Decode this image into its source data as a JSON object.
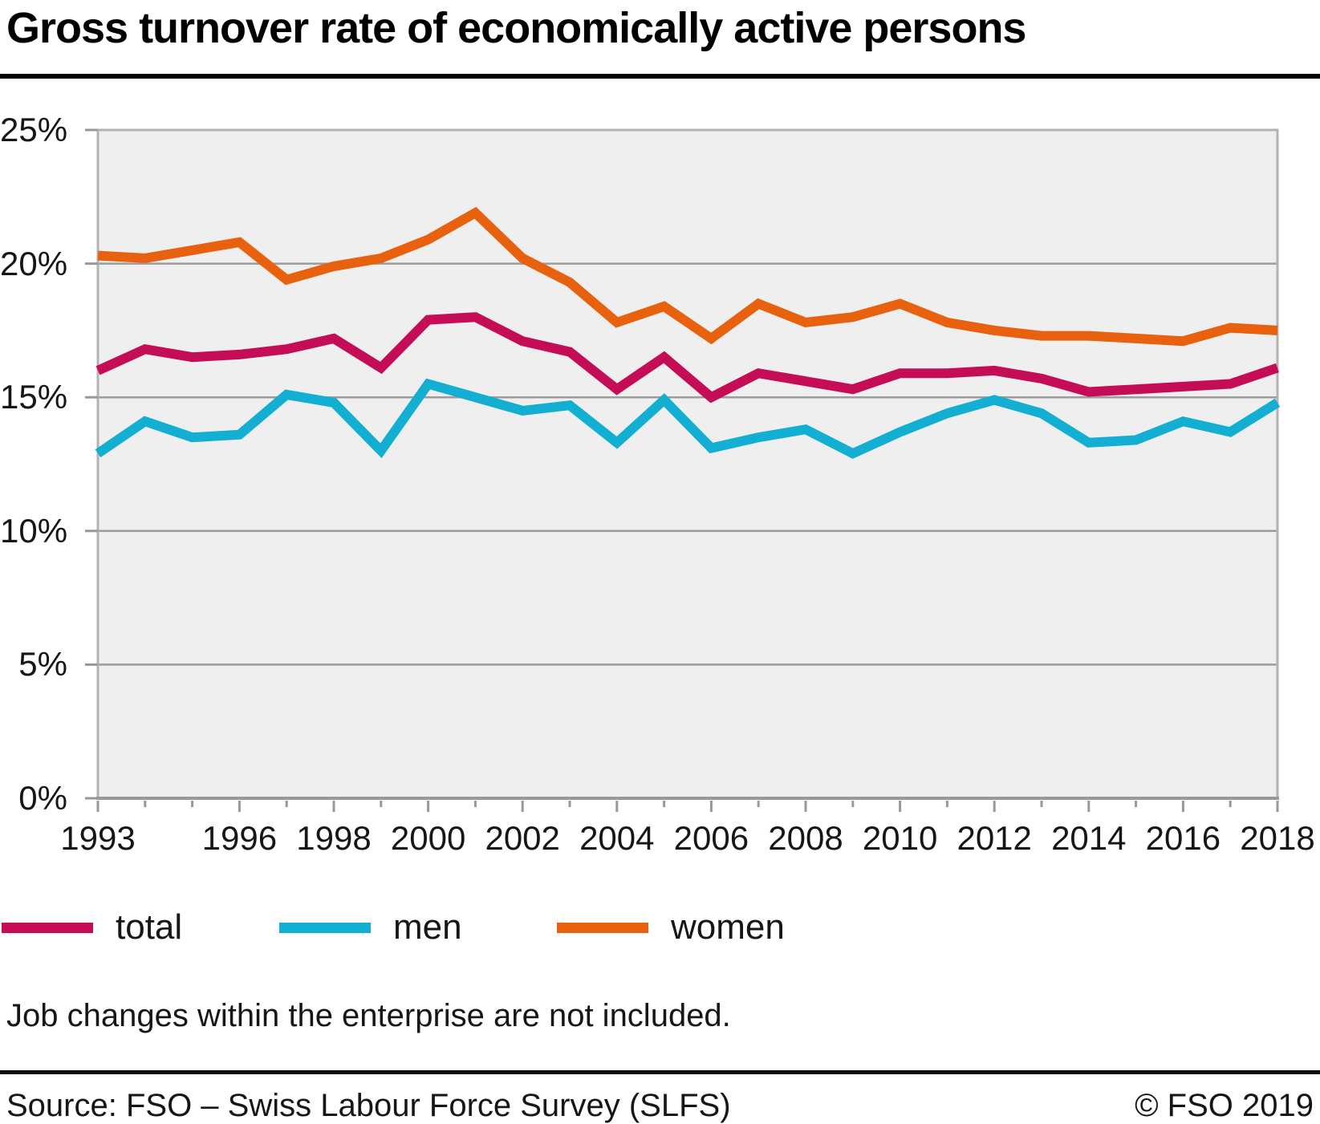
{
  "title": "Gross turnover rate of economically active persons",
  "footnote": "Job changes within the enterprise are not included.",
  "source": "Source: FSO – Swiss Labour Force Survey (SLFS)",
  "copyright": "© FSO 2019",
  "legend": {
    "items": [
      {
        "label": "total",
        "color": "#c40d56"
      },
      {
        "label": "men",
        "color": "#12afd2"
      },
      {
        "label": "women",
        "color": "#e8610e"
      }
    ]
  },
  "chart_data": {
    "type": "line",
    "title": "Gross turnover rate of economically active persons",
    "xlabel": "",
    "ylabel": "",
    "x": [
      1993,
      1994,
      1995,
      1996,
      1997,
      1998,
      1999,
      2000,
      2001,
      2002,
      2003,
      2004,
      2005,
      2006,
      2007,
      2008,
      2009,
      2010,
      2011,
      2012,
      2013,
      2014,
      2015,
      2016,
      2017,
      2018
    ],
    "series": [
      {
        "name": "total",
        "color": "#c40d56",
        "values": [
          16.0,
          16.8,
          16.5,
          16.6,
          16.8,
          17.2,
          16.1,
          17.9,
          18.0,
          17.1,
          16.7,
          15.3,
          16.5,
          15.0,
          15.9,
          15.6,
          15.3,
          15.9,
          15.9,
          16.0,
          15.7,
          15.2,
          15.3,
          15.4,
          15.5,
          16.1
        ]
      },
      {
        "name": "men",
        "color": "#12afd2",
        "values": [
          12.9,
          14.1,
          13.5,
          13.6,
          15.1,
          14.8,
          13.0,
          15.5,
          15.0,
          14.5,
          14.7,
          13.3,
          14.9,
          13.1,
          13.5,
          13.8,
          12.9,
          13.7,
          14.4,
          14.9,
          14.4,
          13.3,
          13.4,
          14.1,
          13.7,
          14.8
        ]
      },
      {
        "name": "women",
        "color": "#e8610e",
        "values": [
          20.3,
          20.2,
          20.5,
          20.8,
          19.4,
          19.9,
          20.2,
          20.9,
          21.9,
          20.2,
          19.3,
          17.8,
          18.4,
          17.2,
          18.5,
          17.8,
          18.0,
          18.5,
          17.8,
          17.5,
          17.3,
          17.3,
          17.2,
          17.1,
          17.6,
          17.5
        ]
      }
    ],
    "ylim": [
      0,
      25
    ],
    "yticks": [
      0,
      5,
      10,
      15,
      20,
      25
    ],
    "ytick_labels": [
      "0%",
      "5%",
      "10%",
      "15%",
      "20%",
      "25%"
    ],
    "xtick_labels": [
      "1993",
      "1996",
      "1998",
      "2000",
      "2002",
      "2004",
      "2006",
      "2008",
      "2010",
      "2012",
      "2014",
      "2016",
      "2018"
    ],
    "grid": true,
    "legend_position": "bottom",
    "plot_bg": "#efefef",
    "grid_color": "#9c9c9c",
    "axis_color": "#999999",
    "border_color": "#b3b3b3"
  }
}
